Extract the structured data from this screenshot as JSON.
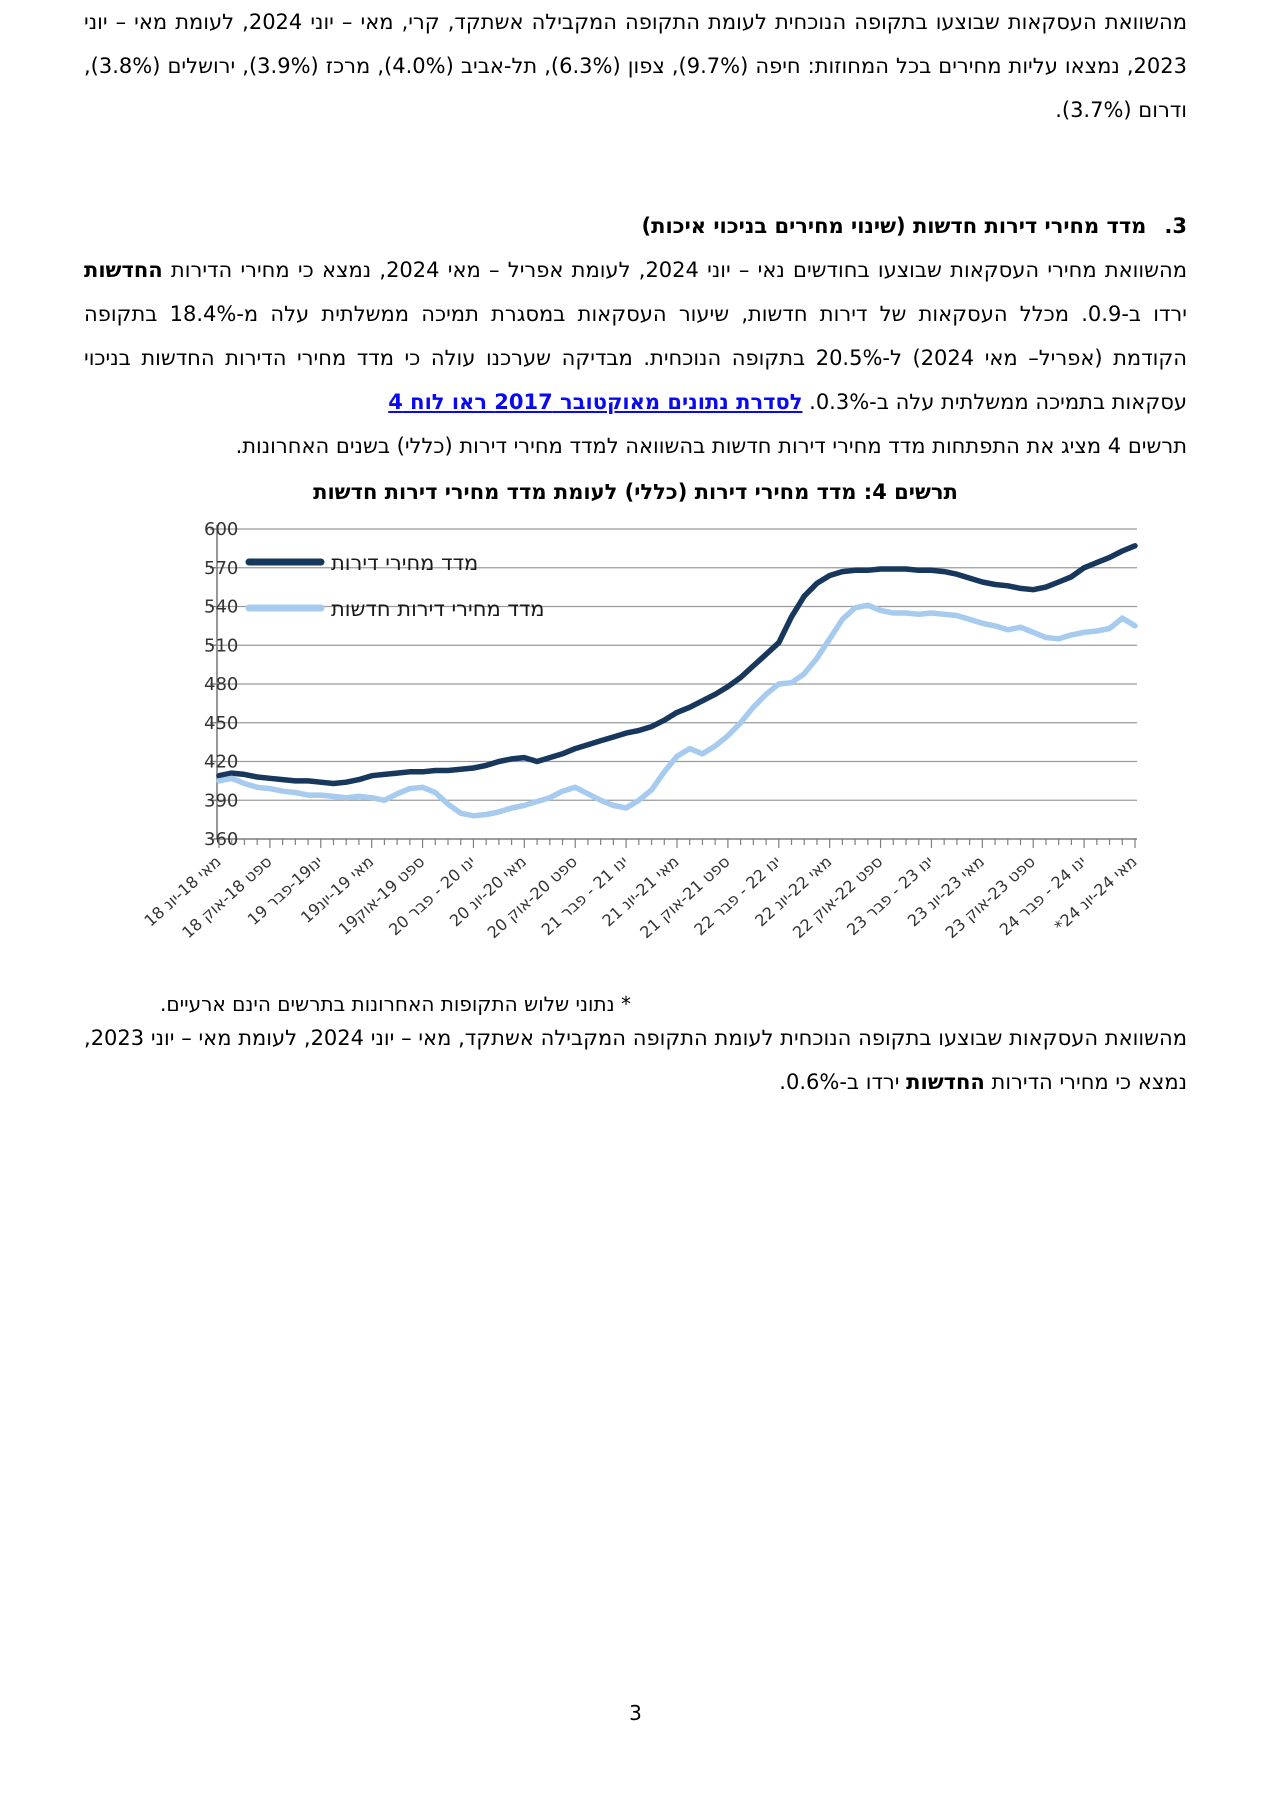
{
  "page": {
    "number": "3"
  },
  "paragraphs": {
    "p1": "מהשוואת העסקאות שבוצעו בתקופה הנוכחית לעומת התקופה המקבילה אשתקד, קרי, מאי – יוני 2024, לעומת מאי – יוני 2023, נמצאו עליות מחירים בכל המחוזות: חיפה (9.7%), צפון (6.3%), תל-אביב (4.0%), מרכז (3.9%), ירושלים (3.8%), ודרום (3.7%).",
    "heading": {
      "number": "3.",
      "text": "מדד מחירי דירות חדשות (שינוי מחירים בניכוי איכות)"
    },
    "p2": {
      "part1": "מהשוואת מחירי העסקאות שבוצעו בחודשים נאי – יוני 2024, לעומת אפריל – מאי 2024, נמצא כי מחירי הדירות ",
      "bold": "החדשות",
      "part2": " ירדו ב-0.9. מכלל העסקאות של דירות חדשות, שיעור העסקאות במסגרת תמיכה ממשלתית עלה מ-18.4% בתקופה הקודמת (אפריל– מאי 2024) ל-20.5% בתקופה הנוכחית. מבדיקה שערכנו עולה כי מדד מחירי הדירות החדשות בניכוי עסקאות בתמיכה ממשלתית עלה ב-0.3%. ",
      "link": "לסדרת נתונים מאוקטובר 2017 ראו לוח 4"
    },
    "p3": "תרשים 4 מציג את התפתחות מדד מחירי דירות חדשות בהשוואה למדד מחירי דירות (כללי) בשנים האחרונות.",
    "footnote": "* נתוני שלוש התקופות האחרונות בתרשים הינם ארעיים.",
    "p4": {
      "part1": "מהשוואת העסקאות שבוצעו בתקופה הנוכחית לעומת התקופה המקבילה אשתקד, מאי – יוני 2024, לעומת מאי – יוני 2023, נמצא כי מחירי הדירות ",
      "bold": "החדשות",
      "part2": " ירדו ב-0.6%."
    }
  },
  "chart_data": {
    "type": "line",
    "title": "תרשים 4: מדד מחירי דירות (כללי) לעומת מדד מחירי דירות חדשות",
    "ylim": [
      360,
      600
    ],
    "yticks": [
      360,
      390,
      420,
      450,
      480,
      510,
      540,
      570,
      600
    ],
    "grid": "horizontal",
    "legend_position": "top-left",
    "label_every_n_points": 4,
    "x_tick_labels": [
      "מאי 18-יונ 18",
      "ספט 18-אוק 18",
      "ינו19-פבר 19",
      "מאי 19-יונ19",
      "ספט 19-אוק19",
      "ינו 20 - פבר 20",
      "מאי 20-יונ 20",
      "ספט 20-אוק 20",
      "ינו 21 - פבר 21",
      "מאי 21-יונ 21",
      "ספט 21-אוק 21",
      "ינו 22 - פבר 22",
      "מאי 22-יונ 22",
      "ספט 22-אוק 22",
      "ינו 23 - פבר 23",
      "מאי 23-יונ 23",
      "ספט 23-אוק 23",
      "ינו 24 - פבר 24",
      "מאי 24-יונ 24*"
    ],
    "series": [
      {
        "name": "מדד מחירי דירות",
        "color": "#17375d",
        "values": [
          409,
          411,
          410,
          408,
          407,
          406,
          405,
          405,
          404,
          403,
          404,
          406,
          409,
          410,
          411,
          412,
          412,
          413,
          413,
          414,
          415,
          417,
          420,
          422,
          423,
          420,
          423,
          426,
          430,
          433,
          436,
          439,
          442,
          444,
          447,
          452,
          458,
          462,
          467,
          472,
          478,
          485,
          494,
          503,
          512,
          532,
          548,
          558,
          564,
          567,
          568,
          568,
          569,
          569,
          569,
          568,
          568,
          567,
          565,
          562,
          559,
          557,
          556,
          554,
          553,
          555,
          559,
          563,
          570,
          574,
          578,
          583,
          587
        ]
      },
      {
        "name": "מדד מחירי דירות חדשות",
        "color": "#a6cbee",
        "values": [
          405,
          407,
          403,
          400,
          399,
          397,
          396,
          394,
          394,
          393,
          392,
          393,
          392,
          390,
          395,
          399,
          400,
          396,
          387,
          380,
          378,
          379,
          381,
          384,
          386,
          389,
          392,
          397,
          400,
          395,
          390,
          386,
          384,
          390,
          398,
          412,
          424,
          430,
          426,
          432,
          440,
          450,
          462,
          472,
          480,
          481,
          488,
          500,
          515,
          530,
          539,
          541,
          537,
          535,
          535,
          534,
          535,
          534,
          533,
          530,
          527,
          525,
          522,
          524,
          520,
          516,
          515,
          518,
          520,
          521,
          523,
          531,
          525
        ]
      }
    ],
    "axis_color": "#7f7f7f",
    "grid_color": "#9b9b9b",
    "tick_label_color": "#333333"
  }
}
